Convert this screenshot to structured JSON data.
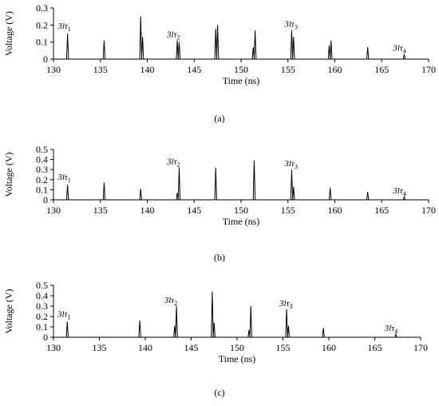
{
  "figure": {
    "captions": [
      "(a)",
      "(b)",
      "(c)"
    ]
  },
  "chart_data": [
    {
      "type": "line",
      "panel": "(a)",
      "xlabel": "Time (ns)",
      "ylabel": "Voltage (V)",
      "xlim": [
        130,
        170
      ],
      "ylim": [
        0,
        0.3
      ],
      "xticks": [
        130,
        135,
        140,
        145,
        150,
        155,
        160,
        165,
        170
      ],
      "yticks": [
        0,
        0.1,
        0.2,
        0.3
      ],
      "grid": false,
      "series": [
        {
          "values": [
            {
              "x": 131.5,
              "y": 0.15
            },
            {
              "x": 135.4,
              "y": 0.11
            },
            {
              "x": 139.3,
              "y": 0.25
            },
            {
              "x": 139.5,
              "y": 0.13
            },
            {
              "x": 143.2,
              "y": 0.11
            },
            {
              "x": 143.4,
              "y": 0.1
            },
            {
              "x": 147.3,
              "y": 0.18
            },
            {
              "x": 147.5,
              "y": 0.2
            },
            {
              "x": 151.3,
              "y": 0.07
            },
            {
              "x": 151.5,
              "y": 0.17
            },
            {
              "x": 155.4,
              "y": 0.17
            },
            {
              "x": 155.6,
              "y": 0.13
            },
            {
              "x": 159.4,
              "y": 0.08
            },
            {
              "x": 159.6,
              "y": 0.11
            },
            {
              "x": 163.5,
              "y": 0.07
            },
            {
              "x": 167.4,
              "y": 0.03
            }
          ]
        }
      ],
      "annotations": [
        {
          "text": "3lτ",
          "sub": "1",
          "x": 131.5
        },
        {
          "text": "3lτ",
          "sub": "2",
          "x": 143.3
        },
        {
          "text": "3lτ",
          "sub": "3",
          "x": 155.5
        },
        {
          "text": "3lτ",
          "sub": "4",
          "x": 167.4
        }
      ]
    },
    {
      "type": "line",
      "panel": "(b)",
      "xlabel": "Time (ns)",
      "ylabel": "Voltage (V)",
      "xlim": [
        130,
        170
      ],
      "ylim": [
        0,
        0.5
      ],
      "xticks": [
        130,
        135,
        140,
        145,
        150,
        155,
        160,
        165,
        170
      ],
      "yticks": [
        0,
        0.1,
        0.2,
        0.3,
        0.4,
        0.5
      ],
      "grid": false,
      "series": [
        {
          "values": [
            {
              "x": 131.5,
              "y": 0.15
            },
            {
              "x": 135.4,
              "y": 0.17
            },
            {
              "x": 139.3,
              "y": 0.11
            },
            {
              "x": 143.2,
              "y": 0.07
            },
            {
              "x": 143.4,
              "y": 0.32
            },
            {
              "x": 147.3,
              "y": 0.32
            },
            {
              "x": 151.4,
              "y": 0.39
            },
            {
              "x": 155.4,
              "y": 0.3
            },
            {
              "x": 155.6,
              "y": 0.13
            },
            {
              "x": 159.5,
              "y": 0.12
            },
            {
              "x": 163.5,
              "y": 0.08
            },
            {
              "x": 167.4,
              "y": 0.03
            }
          ]
        }
      ],
      "annotations": [
        {
          "text": "3lτ",
          "sub": "1",
          "x": 131.5
        },
        {
          "text": "3lτ",
          "sub": "2",
          "x": 143.3
        },
        {
          "text": "3lτ",
          "sub": "3",
          "x": 155.5
        },
        {
          "text": "3lτ",
          "sub": "4",
          "x": 167.4
        }
      ]
    },
    {
      "type": "line",
      "panel": "(c)",
      "xlabel": "Time (ns)",
      "ylabel": "Voltage (V)",
      "xlim": [
        130,
        170
      ],
      "ylim": [
        0,
        0.5
      ],
      "xticks": [
        130,
        135,
        140,
        145,
        150,
        155,
        160,
        165,
        170
      ],
      "yticks": [
        0,
        0.1,
        0.2,
        0.3,
        0.4,
        0.5
      ],
      "grid": false,
      "series": [
        {
          "values": [
            {
              "x": 131.5,
              "y": 0.15
            },
            {
              "x": 139.4,
              "y": 0.16
            },
            {
              "x": 143.2,
              "y": 0.11
            },
            {
              "x": 143.4,
              "y": 0.3
            },
            {
              "x": 147.3,
              "y": 0.44
            },
            {
              "x": 147.5,
              "y": 0.14
            },
            {
              "x": 151.3,
              "y": 0.07
            },
            {
              "x": 151.5,
              "y": 0.3
            },
            {
              "x": 155.4,
              "y": 0.27
            },
            {
              "x": 155.6,
              "y": 0.11
            },
            {
              "x": 159.4,
              "y": 0.09
            },
            {
              "x": 167.3,
              "y": 0.03
            }
          ]
        }
      ],
      "annotations": [
        {
          "text": "3lτ",
          "sub": "1",
          "x": 131.5
        },
        {
          "text": "3lτ",
          "sub": "2",
          "x": 143.3
        },
        {
          "text": "3lτ",
          "sub": "3",
          "x": 155.5
        },
        {
          "text": "3lτ",
          "sub": "4",
          "x": 167.3
        }
      ]
    }
  ]
}
